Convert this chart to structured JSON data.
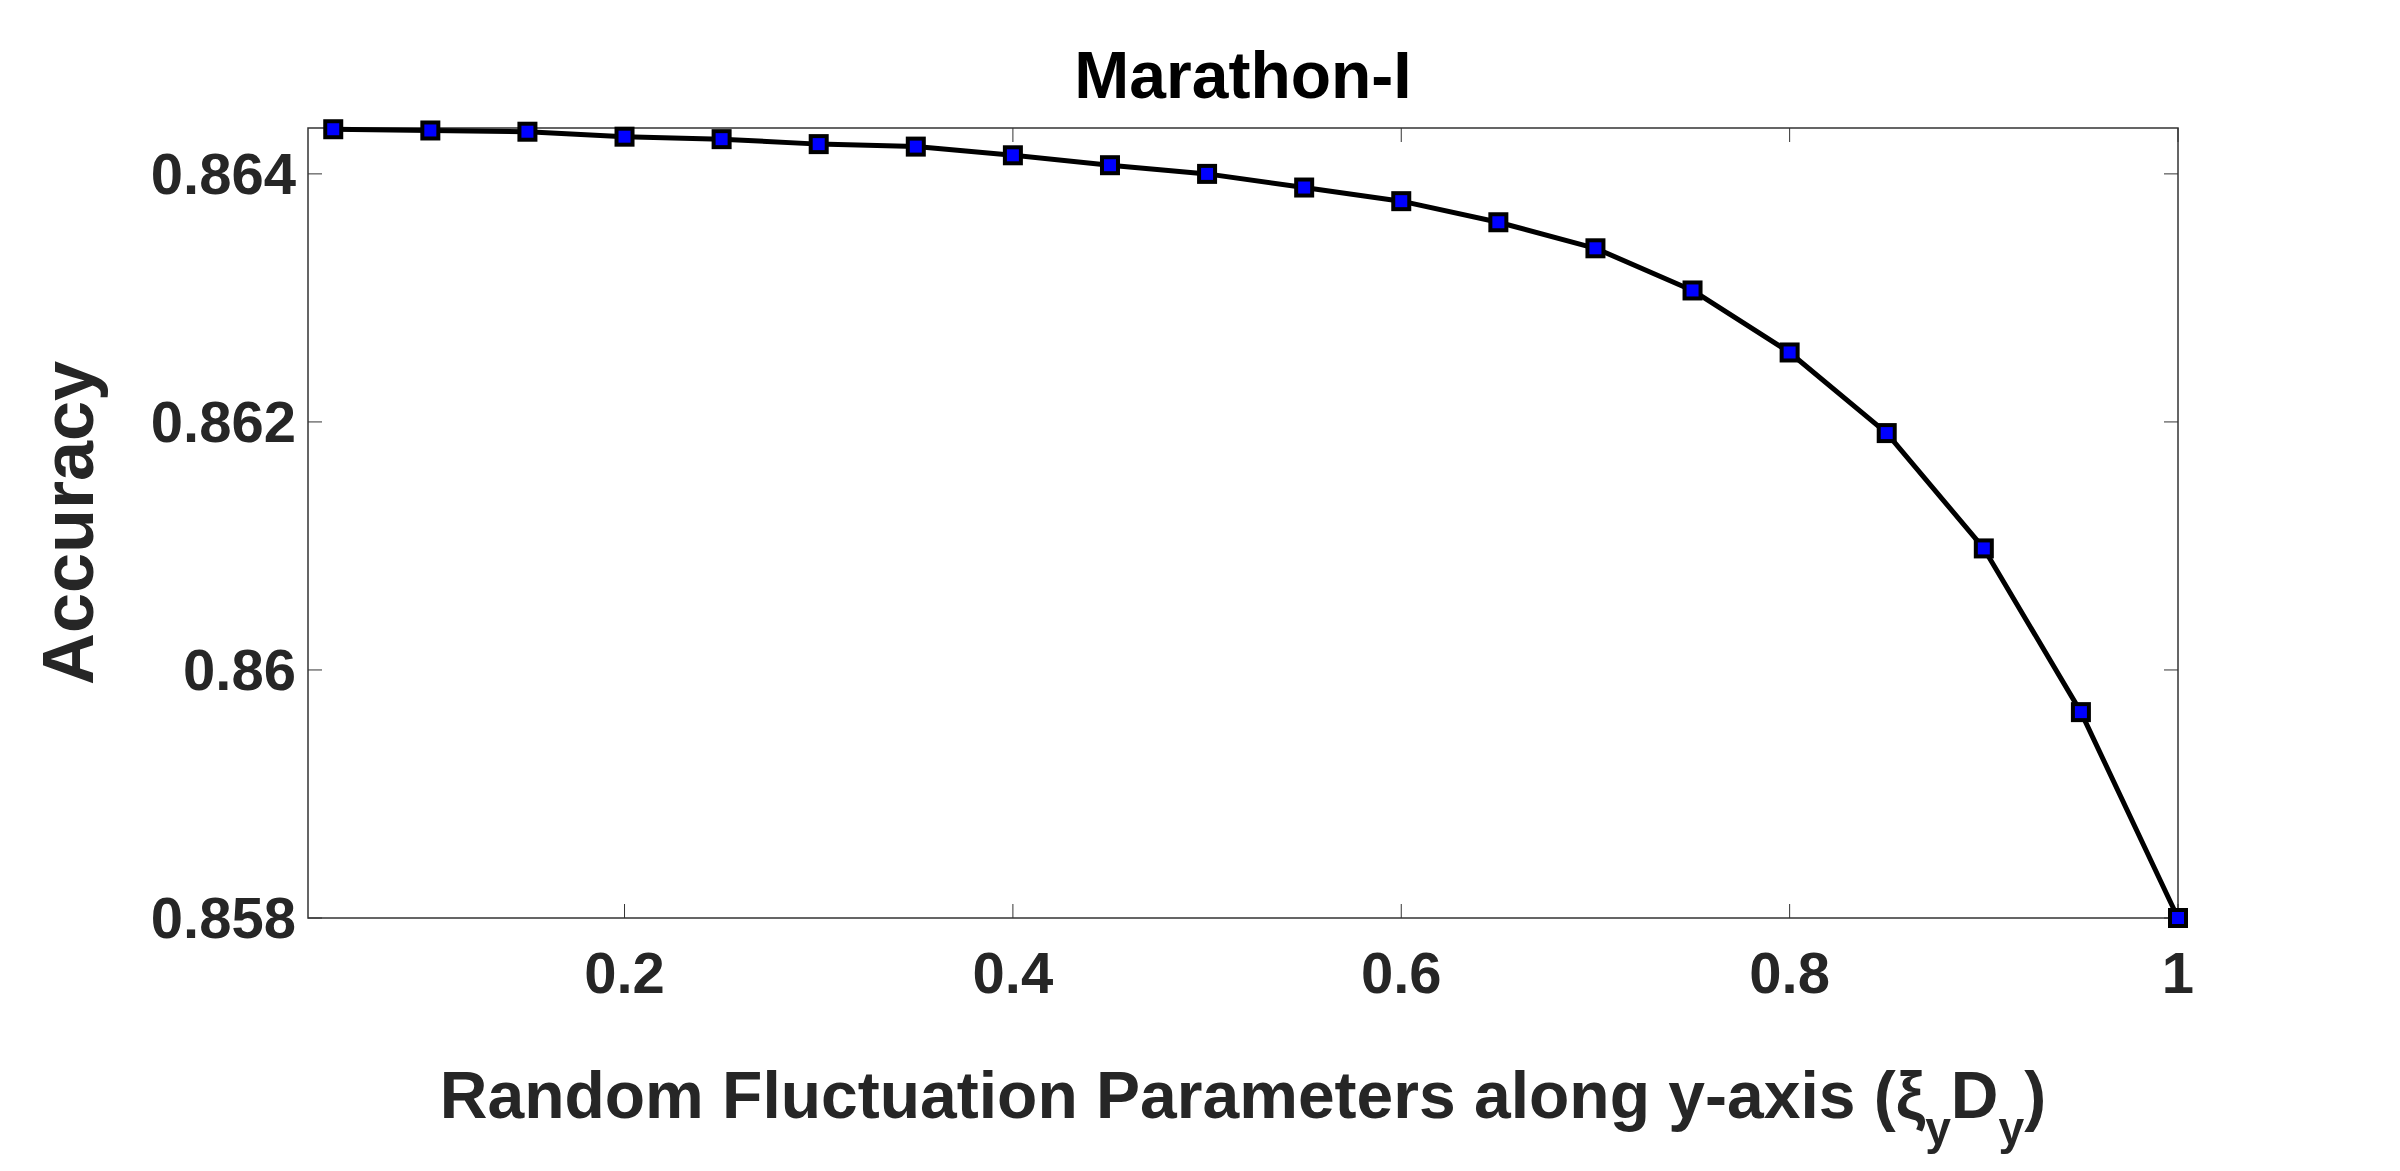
{
  "chart_data": {
    "type": "line",
    "title": "Marathon-I",
    "xlabel": "Random Fluctuation Parameters along y-axis (ξ$_{y}$D$_{y}$)",
    "ylabel": "Accuracy",
    "x": [
      0.05,
      0.1,
      0.15,
      0.2,
      0.25,
      0.3,
      0.35,
      0.4,
      0.45,
      0.5,
      0.55,
      0.6,
      0.65,
      0.7,
      0.75,
      0.8,
      0.85,
      0.9,
      0.95,
      1
    ],
    "series": [
      {
        "color": "#000000",
        "colors": [
          "#0000ff",
          "#0000ff",
          "#0000ff",
          "#0000ff",
          "#0000ff",
          "#0000ff",
          "#0000ff",
          "#0000ff",
          "#0000ff",
          "#0000ff",
          "#0000ff",
          "#0000ff",
          "#0000ff",
          "#0000ff",
          "#0000ff",
          "#0000ff",
          "#0000ff",
          "#0000ff",
          "#0000ff",
          "#0000ff"
        ],
        "values": [
          0.86436,
          0.86435,
          0.86434,
          0.8643,
          0.86428,
          0.86424,
          0.86422,
          0.86415,
          0.86407,
          0.864,
          0.86389,
          0.86378,
          0.86361,
          0.8634,
          0.86306,
          0.86256,
          0.86191,
          0.86098,
          0.85966,
          0.858
        ]
      }
    ],
    "xlim": [
      0.037,
      1
    ],
    "xticks": [
      0.2,
      0.4,
      0.6,
      0.8,
      1
    ],
    "ylim": [
      0.858,
      0.86437
    ],
    "yticks": [
      0.858,
      0.86,
      0.862,
      0.864
    ],
    "grid": false,
    "marker": "square",
    "line_style": "solid"
  }
}
